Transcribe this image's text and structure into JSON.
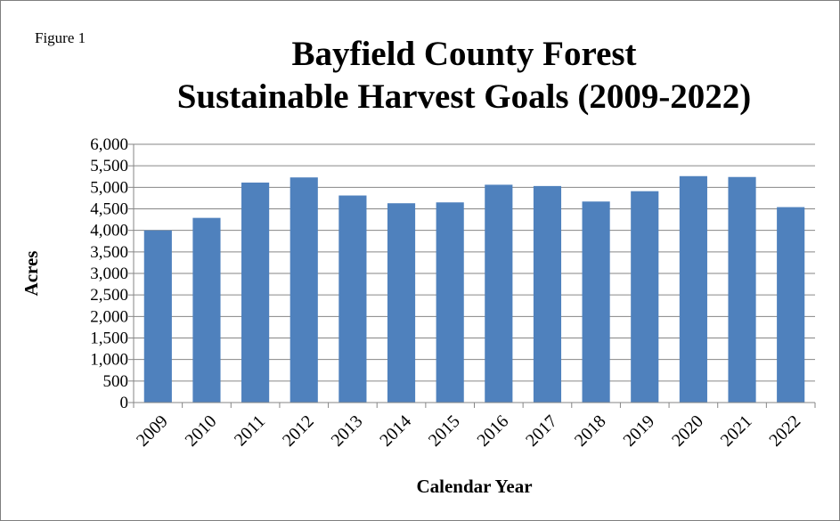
{
  "figure_label": "Figure 1",
  "chart_data": {
    "type": "bar",
    "title_lines": [
      "Bayfield County Forest",
      "Sustainable Harvest Goals (2009-2022)"
    ],
    "xlabel": "Calendar Year",
    "ylabel": "Acres",
    "categories": [
      "2009",
      "2010",
      "2011",
      "2012",
      "2013",
      "2014",
      "2015",
      "2016",
      "2017",
      "2018",
      "2019",
      "2020",
      "2021",
      "2022"
    ],
    "values": [
      4000,
      4290,
      5110,
      5230,
      4810,
      4630,
      4650,
      5060,
      5030,
      4670,
      4910,
      5260,
      5240,
      4540
    ],
    "ylim": [
      0,
      6000
    ],
    "yticks": [
      0,
      500,
      1000,
      1500,
      2000,
      2500,
      3000,
      3500,
      4000,
      4500,
      5000,
      5500,
      6000
    ],
    "ytick_labels": [
      "0",
      "500",
      "1,000",
      "1,500",
      "2,000",
      "2,500",
      "3,000",
      "3,500",
      "4,000",
      "4,500",
      "5,000",
      "5,500",
      "6,000"
    ],
    "grid": true,
    "legend": "none",
    "bar_color": "#4f81bd"
  }
}
